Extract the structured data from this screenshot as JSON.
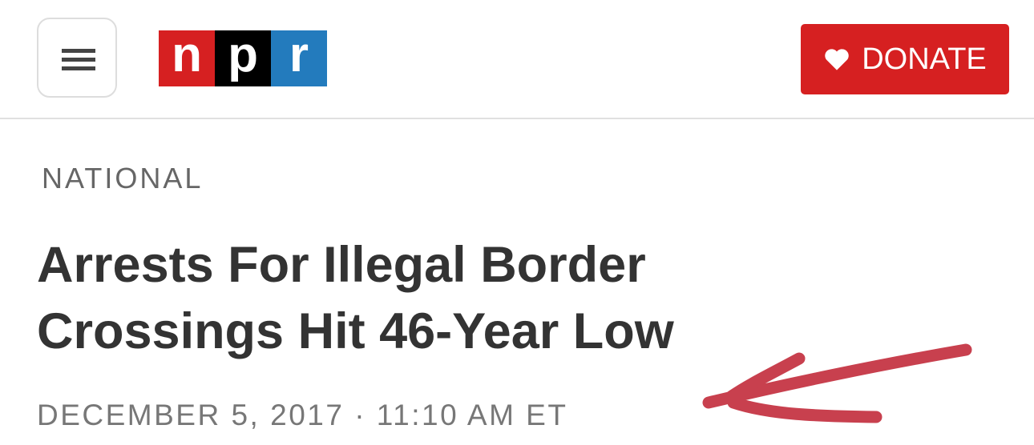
{
  "header": {
    "menu_icon": "hamburger-icon",
    "logo": {
      "letters": [
        "n",
        "p",
        "r"
      ],
      "colors": [
        "#d62021",
        "#000000",
        "#237bbd"
      ]
    },
    "donate": {
      "label": "DONATE",
      "icon": "heart-icon",
      "color": "#d62021"
    }
  },
  "article": {
    "section": "NATIONAL",
    "title_line1": "Arrests For Illegal Border",
    "title_line2": "Crossings Hit 46-Year Low",
    "date": "DECEMBER 5, 2017 · 11:10 AM ET"
  },
  "annotation": {
    "type": "hand-drawn-arrow",
    "color": "#c8404e"
  }
}
